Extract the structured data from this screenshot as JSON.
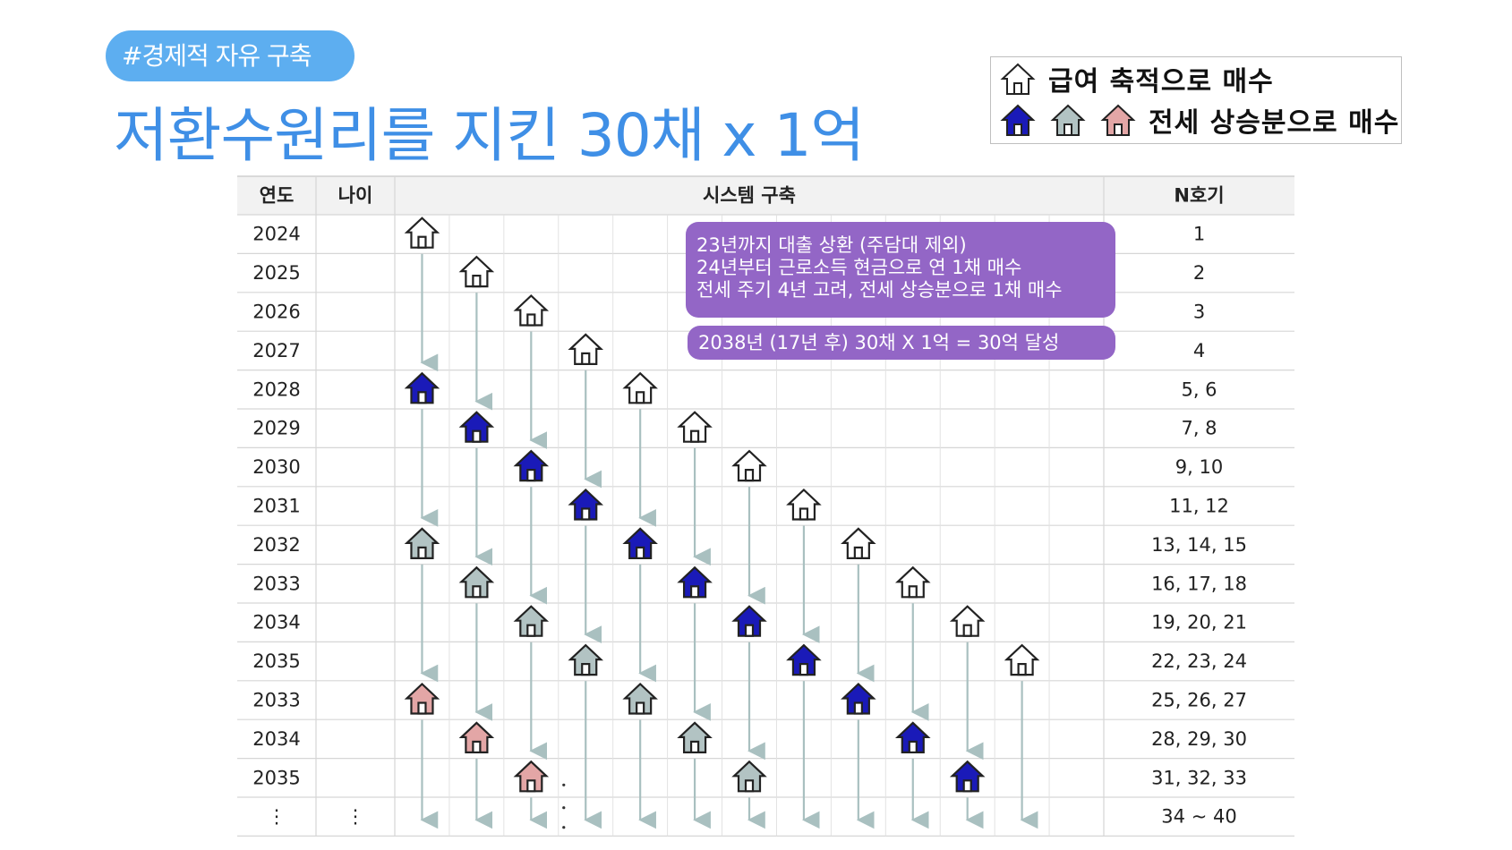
{
  "tag": "#경제적 자유 구축",
  "title": "저환수원리를 지킨 30채 x 1억",
  "legend": {
    "row1": "급여 축적으로 매수",
    "row2": "전세 상승분으로 매수",
    "icons": [
      "outline-house-icon",
      "blue-house-icon",
      "gray-house-icon",
      "pink-house-icon"
    ]
  },
  "table": {
    "headers": {
      "year": "연도",
      "age": "나이",
      "system": "시스템 구축",
      "count": "N호기"
    },
    "rows": [
      {
        "year": "2024",
        "count": "1"
      },
      {
        "year": "2025",
        "count": "2"
      },
      {
        "year": "2026",
        "count": "3"
      },
      {
        "year": "2027",
        "count": "4"
      },
      {
        "year": "2028",
        "count": "5, 6"
      },
      {
        "year": "2029",
        "count": "7, 8"
      },
      {
        "year": "2030",
        "count": "9, 10"
      },
      {
        "year": "2031",
        "count": "11, 12"
      },
      {
        "year": "2032",
        "count": "13, 14, 15"
      },
      {
        "year": "2033",
        "count": "16, 17, 18"
      },
      {
        "year": "2034",
        "count": "19, 20, 21"
      },
      {
        "year": "2035",
        "count": "22, 23, 24"
      },
      {
        "year": "2033",
        "count": "25, 26, 27"
      },
      {
        "year": "2034",
        "count": "28, 29, 30"
      },
      {
        "year": "2035",
        "count": "31, 32, 33"
      },
      {
        "year": "⋮",
        "age": "⋮",
        "count": "34 ~ 40"
      }
    ]
  },
  "notes": {
    "note1": [
      "23년까지 대출 상환 (주담대 제외)",
      "24년부터 근로소득 현금으로 연 1채 매수",
      "전세 주기 4년 고려, 전세 상승분으로 1채 매수"
    ],
    "note2": "2038년 (17년  후) 30채 X 1억 = 30억 달성"
  },
  "colors": {
    "outline": "#ffffff",
    "blue": "#1a1ab8",
    "gray": "#b2c3c3",
    "pink": "#e3a6a6",
    "arrow": "#a9c0c0",
    "note": "#9366c6"
  }
}
